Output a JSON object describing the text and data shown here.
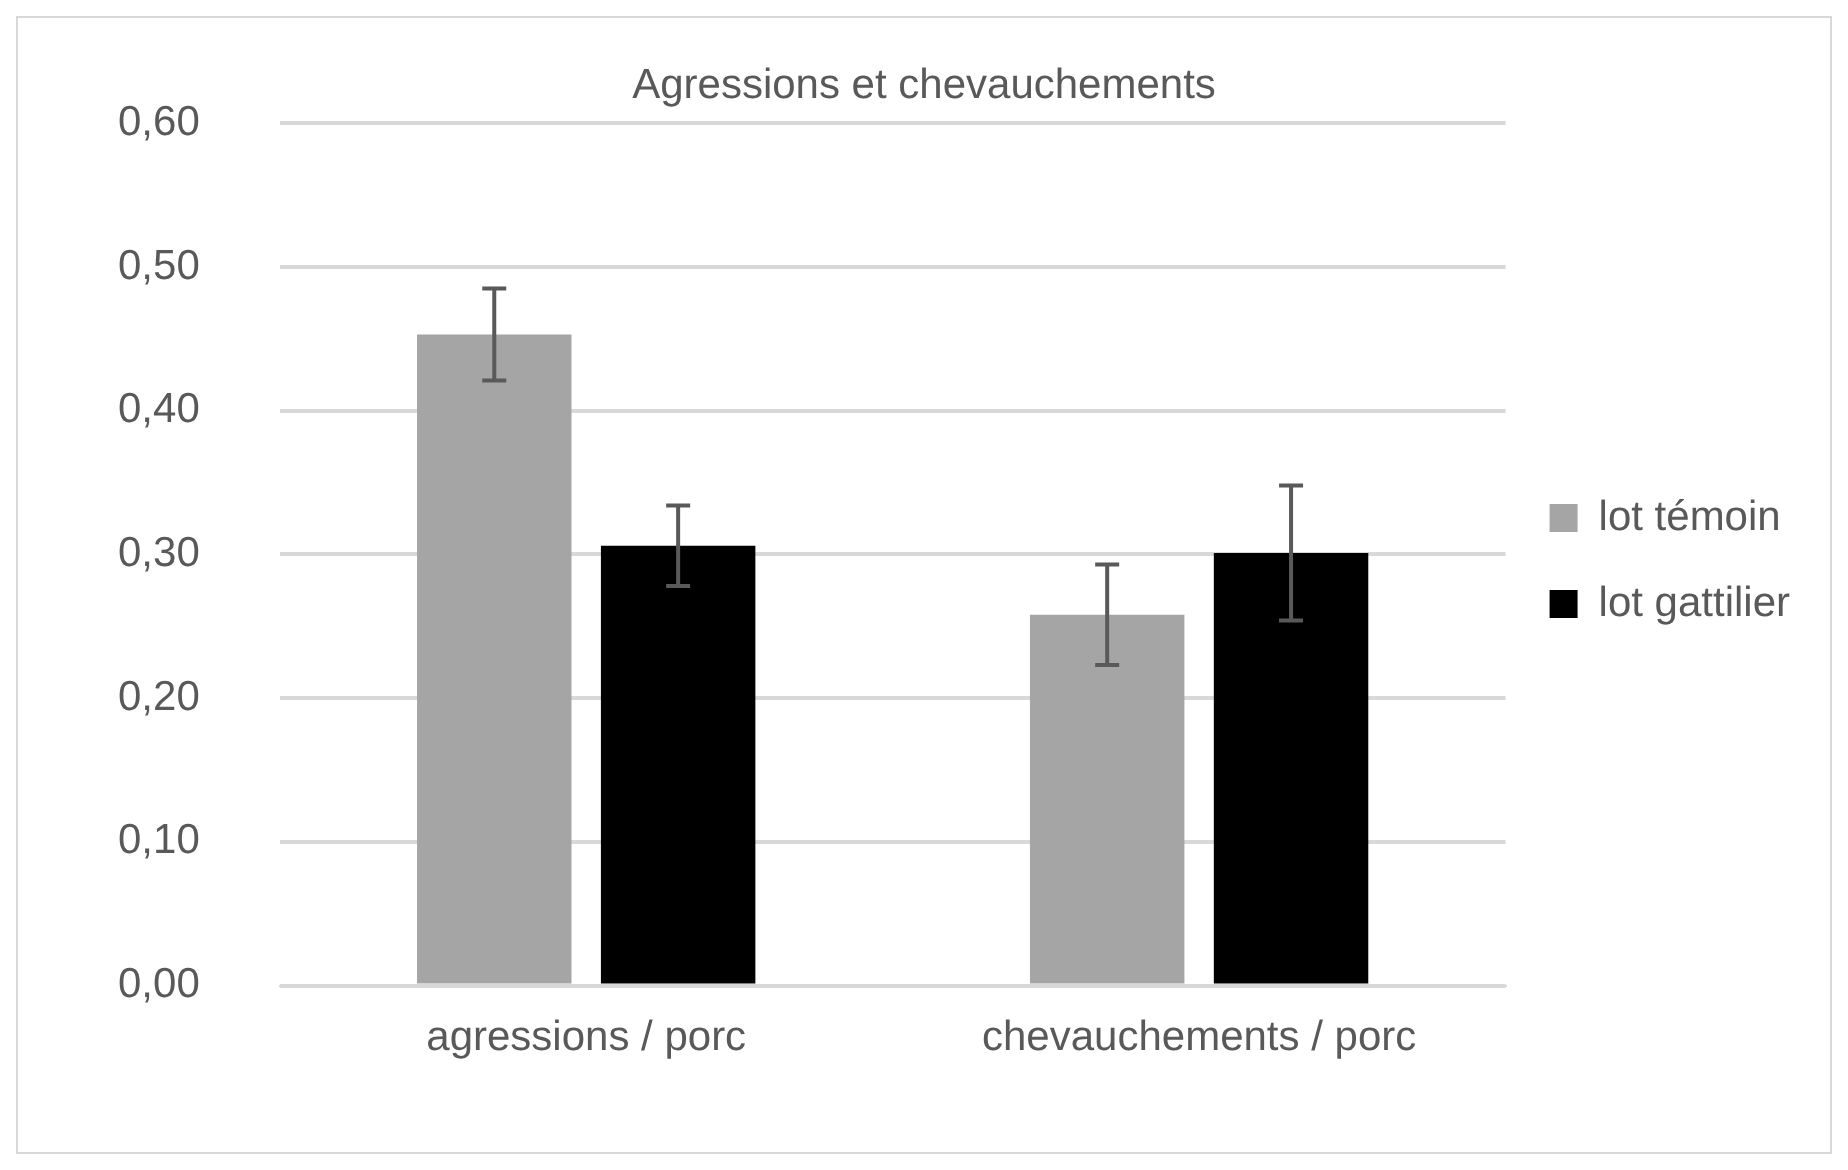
{
  "chart_data": {
    "type": "bar",
    "title": "Agressions et chevauchements",
    "categories": [
      "agressions / porc",
      "chevauchements / porc"
    ],
    "series": [
      {
        "name": "lot témoin",
        "color": "#a5a5a5",
        "values": [
          0.453,
          0.258
        ],
        "errors": [
          0.032,
          0.035
        ]
      },
      {
        "name": "lot gattilier",
        "color": "#000000",
        "values": [
          0.306,
          0.301
        ],
        "errors": [
          0.028,
          0.047
        ]
      }
    ],
    "ylim": [
      0,
      0.6
    ],
    "yticks": [
      {
        "value": 0,
        "label": "0,00"
      },
      {
        "value": 0.1,
        "label": "0,10"
      },
      {
        "value": 0.2,
        "label": "0,20"
      },
      {
        "value": 0.3,
        "label": "0,30"
      },
      {
        "value": 0.4,
        "label": "0,40"
      },
      {
        "value": 0.5,
        "label": "0,50"
      },
      {
        "value": 0.6,
        "label": "0,60"
      }
    ],
    "grid": "y",
    "legend": "right"
  }
}
